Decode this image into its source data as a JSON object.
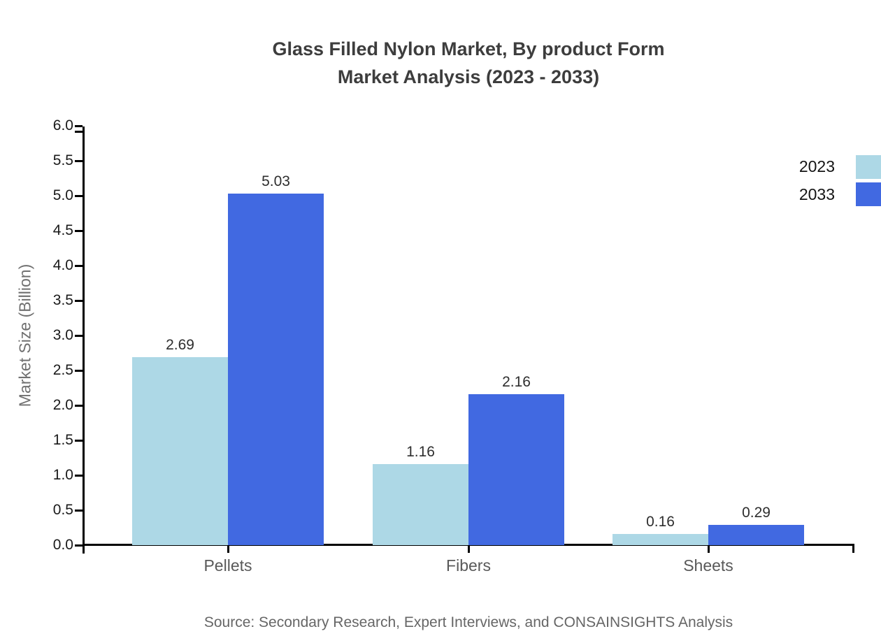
{
  "title": {
    "line1": "Glass Filled Nylon Market, By product Form",
    "line2": "Market Analysis (2023 - 2033)"
  },
  "source_text": "Source: Secondary Research, Expert Interviews, and CONSAINSIGHTS Analysis",
  "legend": [
    {
      "label": "2023",
      "color": "#ADD8E6"
    },
    {
      "label": "2033",
      "color": "#4169E1"
    }
  ],
  "chart_data": {
    "type": "bar",
    "title": "Glass Filled Nylon Market, By product Form Market Analysis (2023 - 2033)",
    "categories": [
      "Pellets",
      "Fibers",
      "Sheets"
    ],
    "series": [
      {
        "name": "2023",
        "color": "#ADD8E6",
        "values": [
          2.69,
          1.16,
          0.16
        ]
      },
      {
        "name": "2033",
        "color": "#4169E1",
        "values": [
          5.03,
          2.16,
          0.29
        ]
      }
    ],
    "xlabel": "",
    "ylabel": "Market Size (Billion)",
    "ylim": [
      0,
      6
    ],
    "ytick_step": 0.5,
    "ytick_decimals": 1,
    "bar_label_decimals": 2,
    "grid": false,
    "legend_position": "right",
    "axis_color": "#000000"
  }
}
